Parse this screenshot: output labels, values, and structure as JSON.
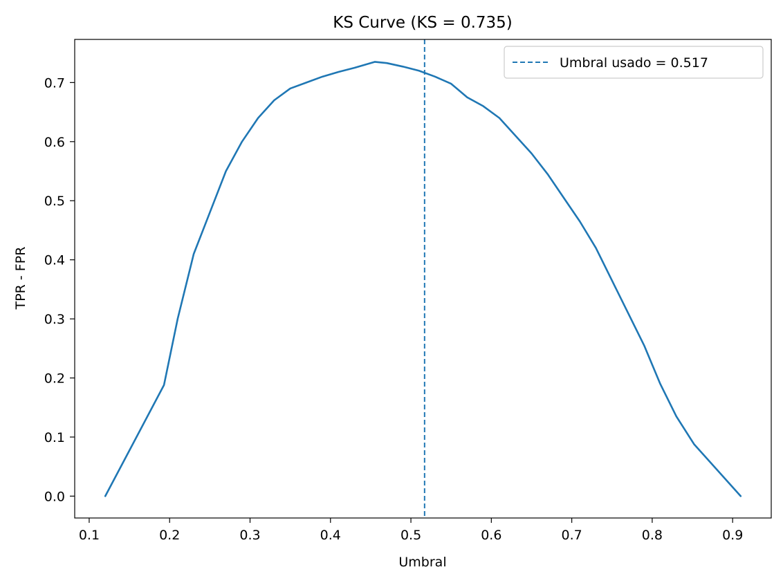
{
  "chart_data": {
    "type": "line",
    "title": "KS Curve (KS = 0.735)",
    "xlabel": "Umbral",
    "ylabel": "TPR - FPR",
    "xlim": [
      0.082,
      0.948
    ],
    "ylim": [
      -0.037,
      0.773
    ],
    "xticks": [
      0.1,
      0.2,
      0.3,
      0.4,
      0.5,
      0.6,
      0.7,
      0.8,
      0.9
    ],
    "yticks": [
      0.0,
      0.1,
      0.2,
      0.3,
      0.4,
      0.5,
      0.6,
      0.7
    ],
    "grid": false,
    "legend_position": "top-right",
    "color": "#1f77b4",
    "series": [
      {
        "x": [
          0.12,
          0.193,
          0.21,
          0.23,
          0.25,
          0.27,
          0.29,
          0.31,
          0.33,
          0.35,
          0.37,
          0.39,
          0.41,
          0.43,
          0.455,
          0.47,
          0.49,
          0.51,
          0.53,
          0.55,
          0.57,
          0.59,
          0.61,
          0.63,
          0.65,
          0.67,
          0.69,
          0.71,
          0.73,
          0.75,
          0.77,
          0.79,
          0.81,
          0.83,
          0.852,
          0.91
        ],
        "y": [
          0.0,
          0.188,
          0.3,
          0.41,
          0.48,
          0.55,
          0.6,
          0.64,
          0.67,
          0.69,
          0.7,
          0.71,
          0.718,
          0.725,
          0.735,
          0.733,
          0.727,
          0.72,
          0.71,
          0.698,
          0.675,
          0.66,
          0.64,
          0.61,
          0.58,
          0.545,
          0.505,
          0.465,
          0.42,
          0.365,
          0.31,
          0.255,
          0.19,
          0.135,
          0.088,
          0.0
        ]
      }
    ],
    "vline": {
      "x": 0.517,
      "label": "Umbral usado = 0.517",
      "style": "dashed"
    }
  }
}
